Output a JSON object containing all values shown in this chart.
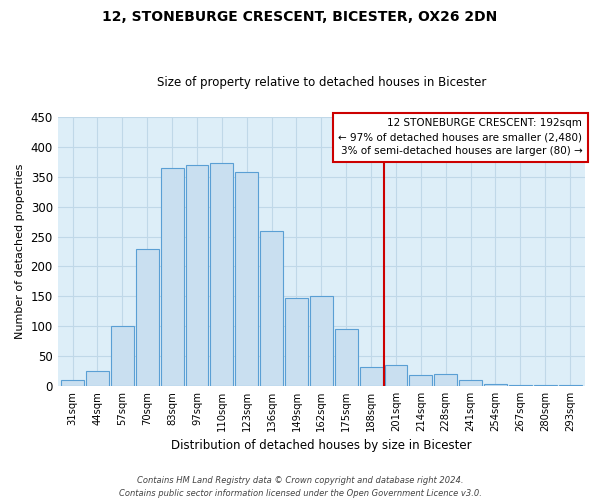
{
  "title": "12, STONEBURGE CRESCENT, BICESTER, OX26 2DN",
  "subtitle": "Size of property relative to detached houses in Bicester",
  "xlabel": "Distribution of detached houses by size in Bicester",
  "ylabel": "Number of detached properties",
  "bar_labels": [
    "31sqm",
    "44sqm",
    "57sqm",
    "70sqm",
    "83sqm",
    "97sqm",
    "110sqm",
    "123sqm",
    "136sqm",
    "149sqm",
    "162sqm",
    "175sqm",
    "188sqm",
    "201sqm",
    "214sqm",
    "228sqm",
    "241sqm",
    "254sqm",
    "267sqm",
    "280sqm",
    "293sqm"
  ],
  "bar_values": [
    10,
    25,
    100,
    230,
    365,
    370,
    373,
    358,
    260,
    147,
    150,
    95,
    32,
    35,
    18,
    20,
    10,
    3,
    2,
    1,
    2
  ],
  "bar_color": "#c9dff0",
  "bar_edge_color": "#5a9fd4",
  "ylim": [
    0,
    450
  ],
  "yticks": [
    0,
    50,
    100,
    150,
    200,
    250,
    300,
    350,
    400,
    450
  ],
  "vline_x": 12.5,
  "vline_color": "#cc0000",
  "annotation_title": "12 STONEBURGE CRESCENT: 192sqm",
  "annotation_line1": "← 97% of detached houses are smaller (2,480)",
  "annotation_line2": "3% of semi-detached houses are larger (80) →",
  "footnote1": "Contains HM Land Registry data © Crown copyright and database right 2024.",
  "footnote2": "Contains public sector information licensed under the Open Government Licence v3.0.",
  "plot_bg_color": "#ddeef8",
  "grid_color": "#c0d8e8"
}
